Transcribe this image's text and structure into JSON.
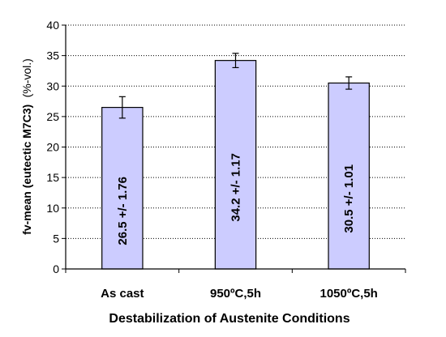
{
  "chart_data": {
    "type": "bar",
    "categories": [
      "As cast",
      "950ºC,5h",
      "1050ºC,5h"
    ],
    "values": [
      26.5,
      34.2,
      30.5
    ],
    "errors": [
      1.76,
      1.17,
      1.01
    ],
    "bar_labels": [
      "26.5 +/- 1.76",
      "34.2 +/- 1.17",
      "30.5 +/- 1.01"
    ],
    "xlabel": "Destabilization of Austenite Conditions",
    "ylabel_main": "fv-mean (eutectic M7C3)",
    "ylabel_unit": "(%-vol.)",
    "ylim": [
      0,
      40
    ],
    "yticks": [
      0,
      5,
      10,
      15,
      20,
      25,
      30,
      35,
      40
    ],
    "grid": "horizontal dotted",
    "bar_color": "#ccccff",
    "bar_edge_color": "#000000"
  }
}
